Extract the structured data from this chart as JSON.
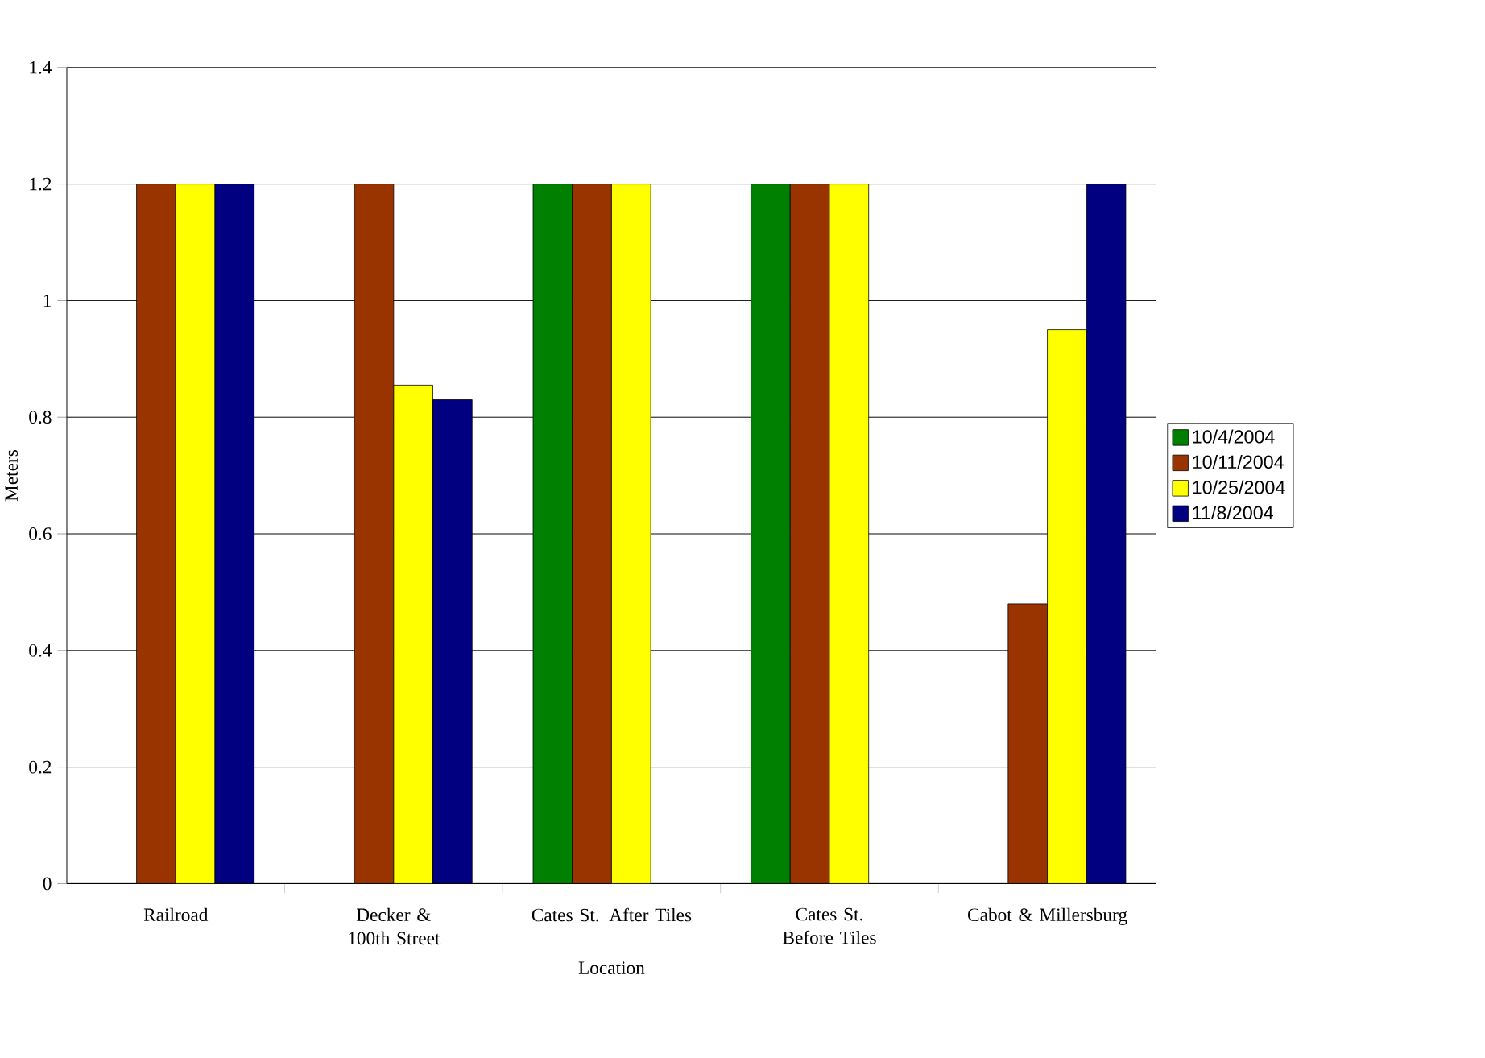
{
  "chart_data": {
    "type": "bar",
    "xlabel": "Location",
    "ylabel": "Meters",
    "categories": [
      "Railroad",
      "Decker & 100th Street",
      "Cates St. After Tiles",
      "Cates St. Before Tiles",
      "Cabot & Millersburg"
    ],
    "series": [
      {
        "name": "10/4/2004",
        "color": "#008000",
        "values": [
          null,
          null,
          1.2,
          1.2,
          null
        ]
      },
      {
        "name": "10/11/2004",
        "color": "#993300",
        "values": [
          1.2,
          1.2,
          1.2,
          1.2,
          0.48
        ]
      },
      {
        "name": "10/25/2004",
        "color": "#ffff00",
        "values": [
          1.2,
          0.855,
          1.2,
          1.2,
          0.95
        ]
      },
      {
        "name": "11/8/2004",
        "color": "#000080",
        "values": [
          1.2,
          0.83,
          null,
          null,
          1.2
        ]
      }
    ],
    "ylim": [
      0,
      1.4
    ],
    "yticks": [
      0,
      0.2,
      0.4,
      0.6,
      0.8,
      1,
      1.2,
      1.4
    ],
    "grid": "y",
    "legend": "right"
  }
}
